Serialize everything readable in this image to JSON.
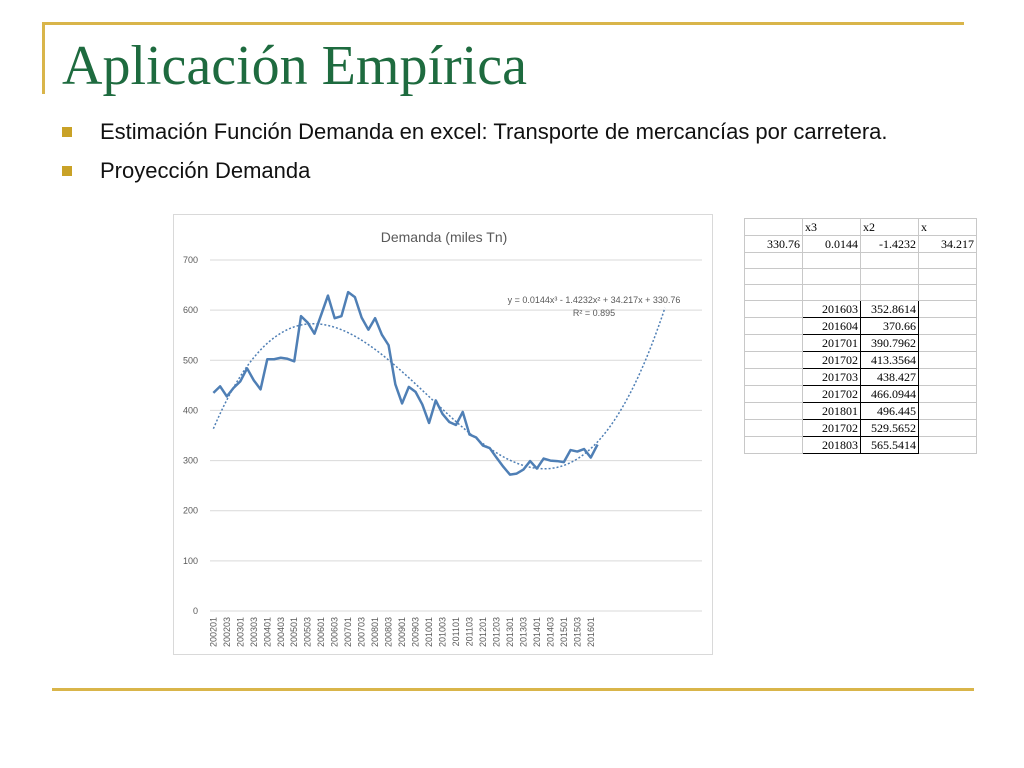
{
  "slide": {
    "title": "Aplicación Empírica",
    "bullets": [
      "Estimación Función Demanda en excel: Transporte de mercancías por carretera.",
      "Proyección Demanda"
    ]
  },
  "colors": {
    "accent": "#d9b54a",
    "title": "#1e6b3f",
    "series": "#4f7fb5"
  },
  "table": {
    "header": [
      "",
      "x3",
      "x2",
      "x"
    ],
    "coefficients": [
      "330.76",
      "0.0144",
      "-1.4232",
      "34.217"
    ],
    "projections": [
      [
        "201603",
        "352.8614"
      ],
      [
        "201604",
        "370.66"
      ],
      [
        "201701",
        "390.7962"
      ],
      [
        "201702",
        "413.3564"
      ],
      [
        "201703",
        "438.427"
      ],
      [
        "201702",
        "466.0944"
      ],
      [
        "201801",
        "496.445"
      ],
      [
        "201702",
        "529.5652"
      ],
      [
        "201803",
        "565.5414"
      ]
    ]
  },
  "chart_data": {
    "type": "line",
    "title": "Demanda (miles Tn)",
    "ylim": [
      0,
      700
    ],
    "yticks": [
      0,
      100,
      200,
      300,
      400,
      500,
      600,
      700
    ],
    "grid": true,
    "trendline": {
      "type": "polynomial",
      "order": 3,
      "equation": "y = 0.0144x³ - 1.4232x² + 34.217x + 330.76",
      "r2": "R² = 0.895",
      "coefficients": [
        0.0144,
        -1.4232,
        34.217,
        330.76
      ],
      "x_range": [
        1,
        68
      ]
    },
    "x_tick_labels": [
      "200201",
      "200203",
      "200301",
      "200303",
      "200401",
      "200403",
      "200501",
      "200503",
      "200601",
      "200603",
      "200701",
      "200703",
      "200801",
      "200803",
      "200901",
      "200903",
      "201001",
      "201003",
      "201101",
      "201103",
      "201201",
      "201203",
      "201301",
      "201303",
      "201401",
      "201403",
      "201501",
      "201503",
      "201601"
    ],
    "x_total_positions": 73,
    "series": [
      {
        "values": [
          435,
          448,
          428,
          445,
          458,
          484,
          460,
          442,
          502,
          502,
          505,
          503,
          498,
          588,
          575,
          553,
          591,
          629,
          584,
          588,
          636,
          626,
          585,
          561,
          584,
          551,
          530,
          452,
          414,
          447,
          437,
          412,
          375,
          420,
          393,
          377,
          371,
          397,
          352,
          346,
          330,
          325,
          306,
          288,
          272,
          274,
          282,
          299,
          284,
          304,
          300,
          299,
          297,
          321,
          318,
          323,
          306,
          332
        ]
      }
    ]
  }
}
